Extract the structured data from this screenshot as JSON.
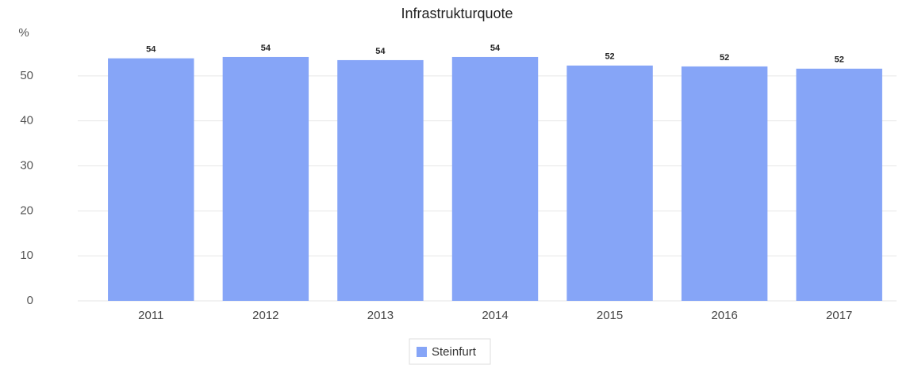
{
  "chart_data": {
    "type": "bar",
    "title": "Infrastrukturquote",
    "y_label": "%",
    "categories": [
      "2011",
      "2012",
      "2013",
      "2014",
      "2015",
      "2016",
      "2017"
    ],
    "series": [
      {
        "name": "Steinfurt",
        "color": "#86a5f7",
        "values": [
          53.9,
          54.2,
          53.5,
          54.2,
          52.3,
          52.1,
          51.6
        ],
        "value_labels": [
          "54",
          "54",
          "54",
          "54",
          "52",
          "52",
          "52"
        ]
      }
    ],
    "ylim": [
      0,
      60
    ],
    "yticks": [
      0,
      10,
      20,
      30,
      40,
      50
    ],
    "grid": true,
    "legend": "bottom"
  }
}
